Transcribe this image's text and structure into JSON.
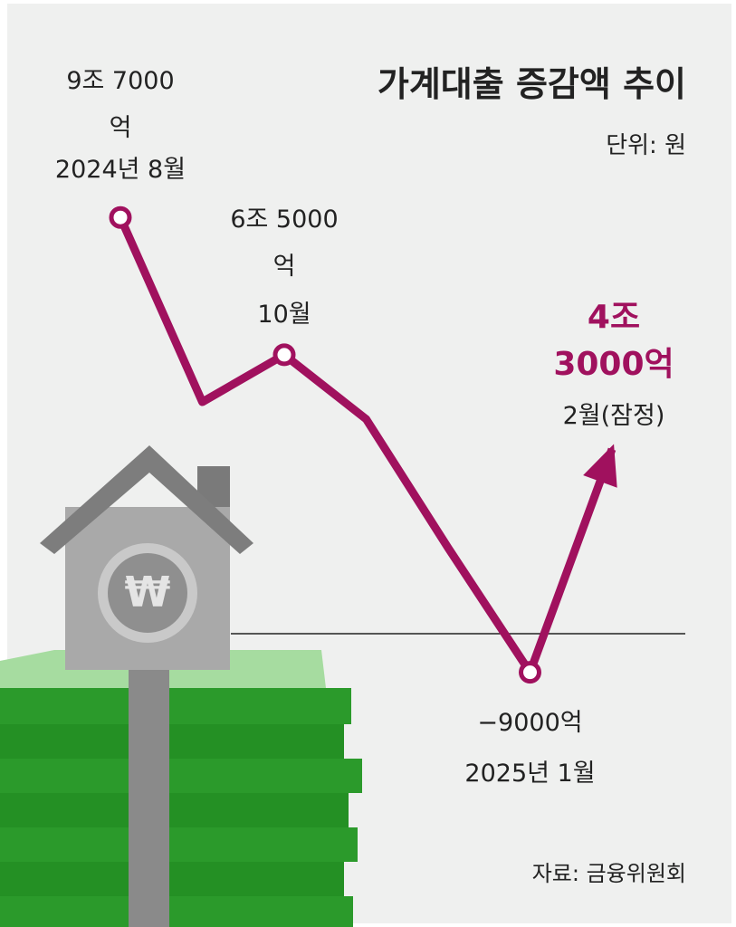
{
  "chart_data": {
    "type": "line",
    "title": "가계대출 증감액 추이",
    "subtitle": "단위: 원",
    "source": "자료: 금융위원회",
    "categories": [
      "2024년 8월",
      null,
      "10월",
      null,
      null,
      "2025년 1월",
      "2월(잠정)"
    ],
    "series": [
      {
        "color": "#a0115e",
        "values": [
          97000,
          54000,
          65000,
          50000,
          20000,
          -9000,
          43000
        ],
        "value_labels": [
          "9조 7000억",
          null,
          "6조 5000억",
          null,
          null,
          "−9000억",
          "4조 3000억"
        ]
      }
    ]
  }
}
